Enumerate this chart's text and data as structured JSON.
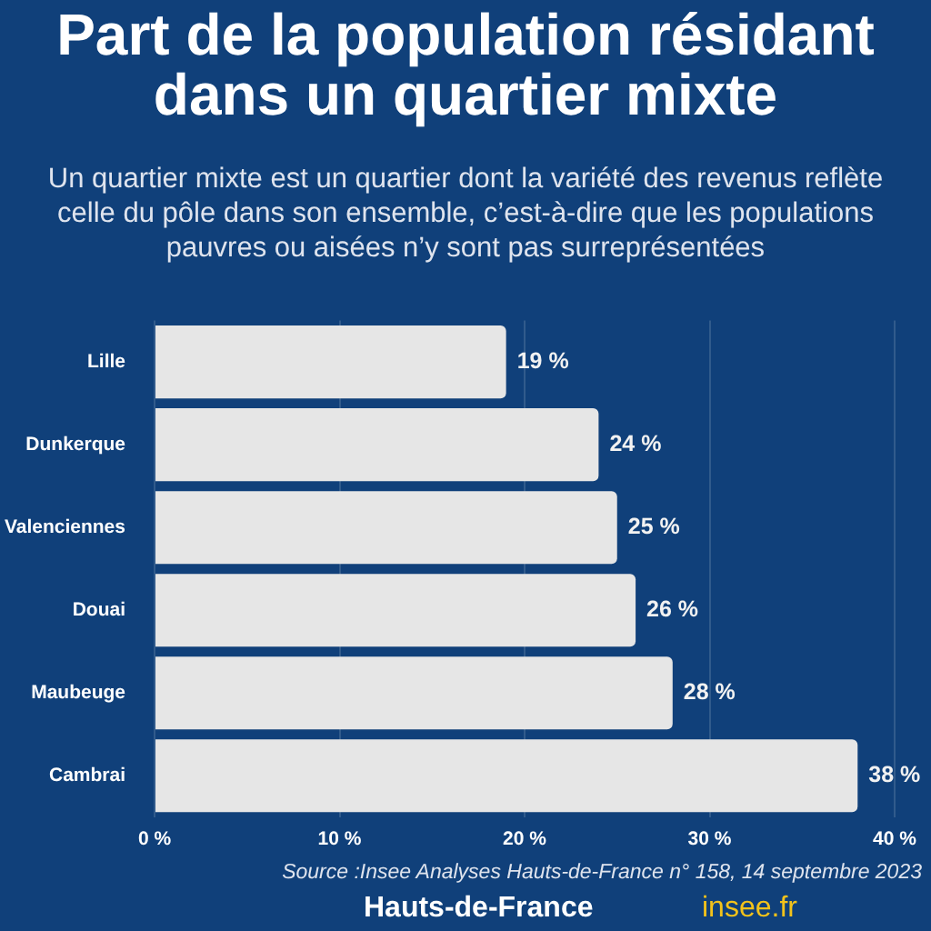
{
  "chart_data": {
    "type": "bar",
    "orientation": "horizontal",
    "title": "Part de la population résidant dans un quartier mixte",
    "subtitle": "Un quartier mixte est un quartier dont la variété des revenus reflète celle du pôle dans son ensemble, c’est-à-dire que les populations pauvres ou aisées n’y sont pas surreprésentées",
    "categories": [
      "Lille",
      "Dunkerque",
      "Valenciennes",
      "Douai",
      "Maubeuge",
      "Cambrai"
    ],
    "values": [
      19,
      24,
      25,
      26,
      28,
      38
    ],
    "value_labels": [
      "19 %",
      "24 %",
      "25 %",
      "26 %",
      "28 %",
      "38 %"
    ],
    "color": "#e6e6e6",
    "xlim": [
      0,
      40
    ],
    "xticks": [
      {
        "value": 0,
        "label": "0 %"
      },
      {
        "value": 10,
        "label": "10 %"
      },
      {
        "value": 20,
        "label": "20 %"
      },
      {
        "value": 30,
        "label": "30 %"
      },
      {
        "value": 40,
        "label": "40 %"
      }
    ],
    "grid": "x",
    "annotations": [
      "Source :Insee Analyses Hauts-de-France n° 158, 14 septembre 2023",
      "Hauts-de-France",
      "insee.fr"
    ]
  }
}
